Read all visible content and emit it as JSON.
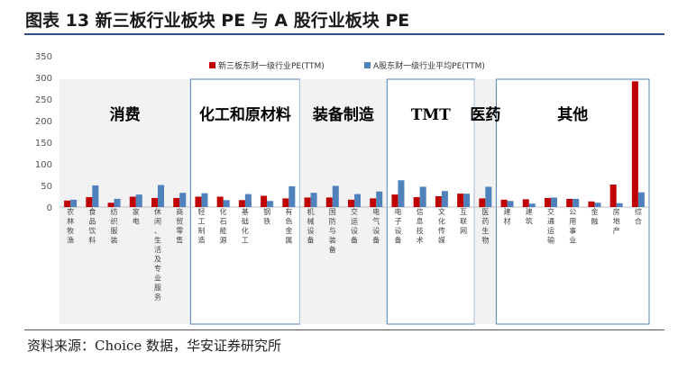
{
  "title": "图表 13 新三板行业板块 PE 与 A 股行业板块 PE",
  "source": "资料来源：Choice 数据，华安证券研究所",
  "colors": {
    "series1": "#c00000",
    "series2": "#4f81bd",
    "frame": "#4f81bd",
    "shade": "#f2f2f2",
    "title_rule": "#2f4f7f"
  },
  "chart_data": {
    "type": "bar",
    "ylim": [
      0,
      350
    ],
    "yticks": [
      0,
      50,
      100,
      150,
      200,
      250,
      300,
      350
    ],
    "legend_position": "top-right",
    "categories": [
      "农林牧渔",
      "食品饮料",
      "纺织服装",
      "家电",
      "休闲、生活及专业服务",
      "商贸零售",
      "轻工制造",
      "化石能源",
      "基础化工",
      "钢铁",
      "有色金属",
      "机械设备",
      "国防与装备",
      "交运设备",
      "电气设备",
      "电子设备",
      "信息技术",
      "文化传媒",
      "互联网",
      "医药生物",
      "建材",
      "建筑",
      "交通运输",
      "公用事业",
      "金融",
      "房地产",
      "综合"
    ],
    "series": [
      {
        "name": "新三板东财一级行业PE(TTM)",
        "values": [
          15,
          23,
          10,
          24,
          21,
          21,
          24,
          24,
          16,
          26,
          20,
          22,
          22,
          17,
          20,
          29,
          23,
          25,
          31,
          20,
          17,
          18,
          21,
          19,
          13,
          52,
          291
        ]
      },
      {
        "name": "A股东财一级行业平均PE(TTM)",
        "values": [
          17,
          50,
          19,
          29,
          51,
          33,
          32,
          16,
          30,
          14,
          48,
          33,
          49,
          30,
          36,
          62,
          47,
          37,
          31,
          47,
          14,
          8,
          22,
          19,
          10,
          9,
          34
        ]
      }
    ],
    "groups": [
      {
        "label": "消费",
        "start": 0,
        "end": 5,
        "shaded": true
      },
      {
        "label": "化工和原材料",
        "start": 6,
        "end": 10,
        "shaded": false
      },
      {
        "label": "装备制造",
        "start": 11,
        "end": 14,
        "shaded": true
      },
      {
        "label": "TMT",
        "start": 15,
        "end": 18,
        "shaded": false
      },
      {
        "label": "医药",
        "start": 19,
        "end": 19,
        "shaded": true
      },
      {
        "label": "其他",
        "start": 20,
        "end": 26,
        "shaded": false
      }
    ]
  }
}
